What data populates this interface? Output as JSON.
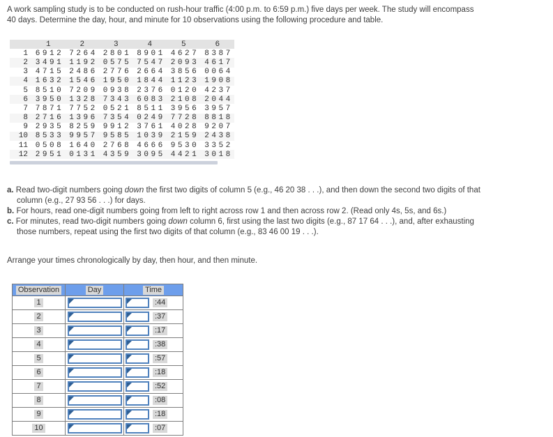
{
  "intro": {
    "lines": [
      "A work sampling study is to be conducted on rush-hour traffic (4:00 p.m. to 6:59 p.m.) five days per week. The study will encompass",
      "40 days. Determine the day, hour, and minute for 10 observations using the following procedure and table."
    ]
  },
  "random_table": {
    "col_headers": [
      "1",
      "2",
      "3",
      "4",
      "5",
      "6"
    ],
    "rows": [
      {
        "label": "1",
        "values": [
          "6912",
          "7264",
          "2801",
          "8901",
          "4627",
          "8387"
        ]
      },
      {
        "label": "2",
        "values": [
          "3491",
          "1192",
          "0575",
          "7547",
          "2093",
          "4617"
        ]
      },
      {
        "label": "3",
        "values": [
          "4715",
          "2486",
          "2776",
          "2664",
          "3856",
          "0064"
        ]
      },
      {
        "label": "4",
        "values": [
          "1632",
          "1546",
          "1950",
          "1844",
          "1123",
          "1908"
        ]
      },
      {
        "label": "5",
        "values": [
          "8510",
          "7209",
          "0938",
          "2376",
          "0120",
          "4237"
        ]
      },
      {
        "label": "6",
        "values": [
          "3950",
          "1328",
          "7343",
          "6083",
          "2108",
          "2044"
        ]
      },
      {
        "label": "7",
        "values": [
          "7871",
          "7752",
          "0521",
          "8511",
          "3956",
          "3957"
        ]
      },
      {
        "label": "8",
        "values": [
          "2716",
          "1396",
          "7354",
          "0249",
          "7728",
          "8818"
        ]
      },
      {
        "label": "9",
        "values": [
          "2935",
          "8259",
          "9912",
          "3761",
          "4028",
          "9207"
        ]
      },
      {
        "label": "10",
        "values": [
          "8533",
          "9957",
          "9585",
          "1039",
          "2159",
          "2438"
        ]
      },
      {
        "label": "11",
        "values": [
          "0508",
          "1640",
          "2768",
          "4666",
          "9530",
          "3352"
        ]
      },
      {
        "label": "12",
        "values": [
          "2951",
          "0131",
          "4359",
          "3095",
          "4421",
          "3018"
        ]
      }
    ]
  },
  "procedure": {
    "a": {
      "label": "a.",
      "line1_pre": "Read two-digit numbers going ",
      "line1_italic": "down",
      "line1_post": " the first two digits of column 5 (e.g., 46 20 38 . . .), and then down the second two digits of that",
      "line2": "column (e.g., 27 93 56 . . .) for days."
    },
    "b": {
      "label": "b.",
      "text": "For hours, read one-digit numbers going from left to right across row 1 and then across row 2. (Read only 4s, 5s, and 6s.)"
    },
    "c": {
      "label": "c.",
      "line1_pre": "For minutes, read two-digit numbers going ",
      "line1_italic": "down",
      "line1_post": " column 6, first using the last two digits (e.g., 87 17 64 . . .), and, after exhausting",
      "line2": "those numbers, repeat using the first two digits of that column (e.g., 83 46 00 19 . . .)."
    }
  },
  "arrange_text": "Arrange your times chronologically by day, then hour, and then minute.",
  "observation_table": {
    "headers": [
      "Observation",
      "Day",
      "Time"
    ],
    "rows": [
      {
        "obs": "1",
        "day_value": "",
        "time_value": "",
        "minute": ":44"
      },
      {
        "obs": "2",
        "day_value": "",
        "time_value": "",
        "minute": ":37"
      },
      {
        "obs": "3",
        "day_value": "",
        "time_value": "",
        "minute": ":17"
      },
      {
        "obs": "4",
        "day_value": "",
        "time_value": "",
        "minute": ":38"
      },
      {
        "obs": "5",
        "day_value": "",
        "time_value": "",
        "minute": ":57"
      },
      {
        "obs": "6",
        "day_value": "",
        "time_value": "",
        "minute": ":18"
      },
      {
        "obs": "7",
        "day_value": "",
        "time_value": "",
        "minute": ":52"
      },
      {
        "obs": "8",
        "day_value": "",
        "time_value": "",
        "minute": ":08"
      },
      {
        "obs": "9",
        "day_value": "",
        "time_value": "",
        "minute": ":18"
      },
      {
        "obs": "10",
        "day_value": "",
        "time_value": "",
        "minute": ":07"
      }
    ]
  },
  "colors": {
    "obs_header_blue": "#6d9eeb",
    "answer_border_blue": "#4f81bd",
    "marker_flag_blue": "#2f5f94",
    "highlight_gray": "#d8d8d8",
    "table_header_gray": "#e3e3e3",
    "scrollbar_gray": "#ccd1dc"
  }
}
